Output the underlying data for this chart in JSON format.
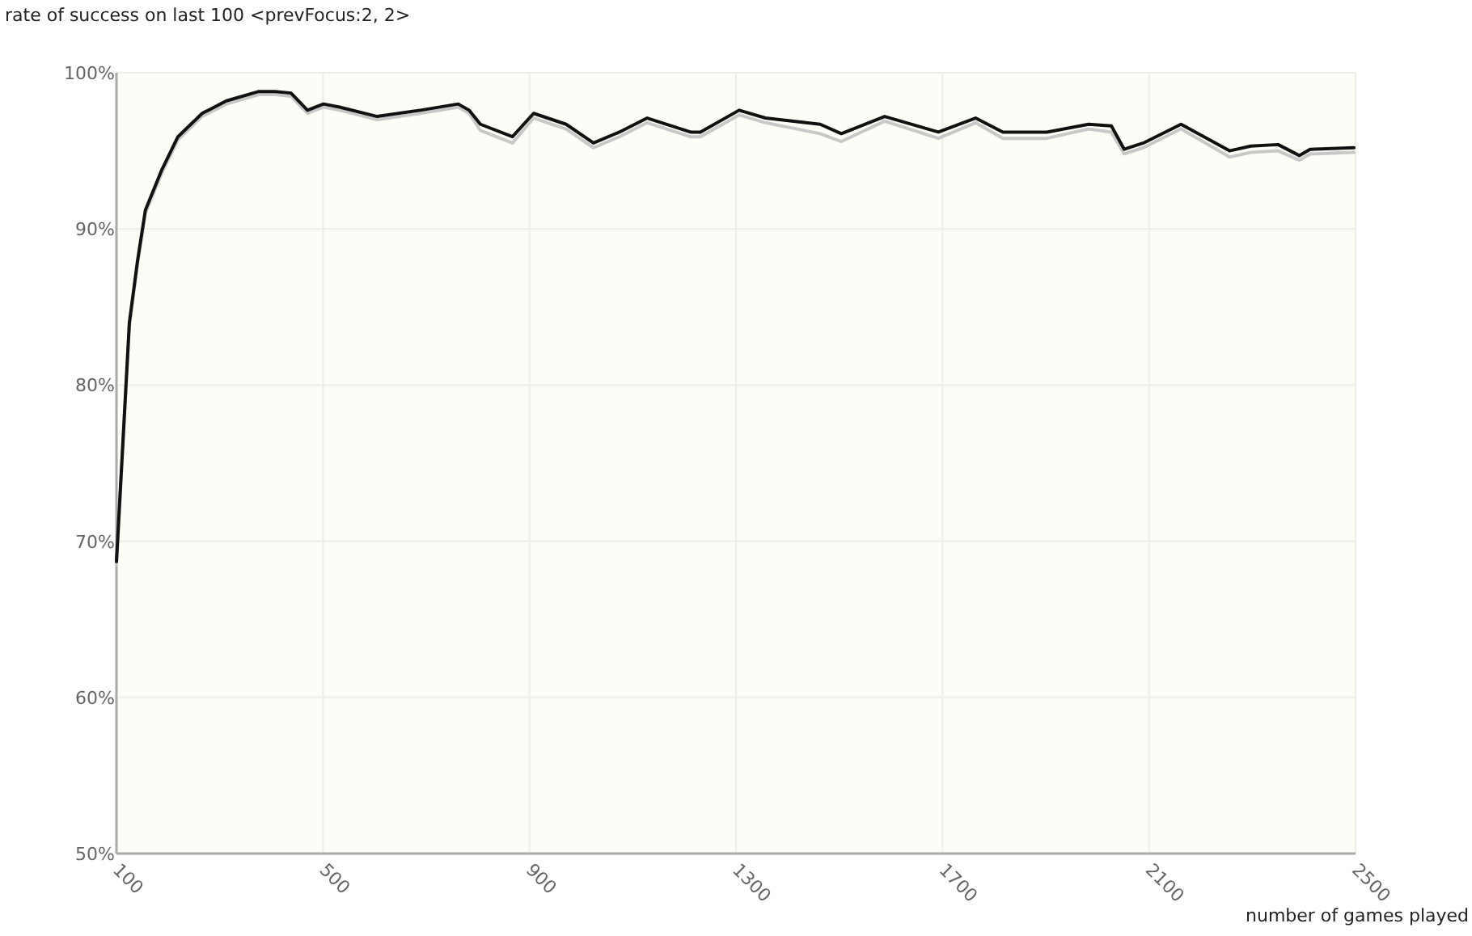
{
  "chart_data": {
    "type": "line",
    "title": "rate of success on last 100 <prevFocus:2, 2>",
    "xlabel": "number of games played",
    "xlim": [
      100,
      2500
    ],
    "xticks": [
      100,
      500,
      900,
      1300,
      1700,
      2100,
      2500
    ],
    "ylim": [
      50,
      100
    ],
    "yticks": [
      {
        "value": 50,
        "label": "50%"
      },
      {
        "value": 60,
        "label": "60%"
      },
      {
        "value": 70,
        "label": "70%"
      },
      {
        "value": 80,
        "label": "80%"
      },
      {
        "value": 90,
        "label": "90%"
      },
      {
        "value": 100,
        "label": "100%"
      }
    ],
    "grid": true,
    "marker": "none",
    "line_style": "solid",
    "x": [
      100,
      125,
      141,
      156,
      188,
      219,
      266,
      313,
      376,
      407,
      438,
      470,
      501,
      532,
      605,
      689,
      762,
      783,
      805,
      867,
      908,
      971,
      1024,
      1074,
      1128,
      1212,
      1231,
      1306,
      1357,
      1463,
      1504,
      1588,
      1692,
      1764,
      1817,
      1902,
      1983,
      2027,
      2052,
      2089,
      2162,
      2256,
      2297,
      2350,
      2391,
      2412,
      2497
    ],
    "series": [
      {
        "color": "#c8c8c8",
        "values": [
          68.5,
          83.8,
          87.8,
          91,
          93.6,
          95.7,
          97.2,
          98,
          98.6,
          98.6,
          98.5,
          97.4,
          97.8,
          97.6,
          97,
          97.4,
          97.8,
          97.4,
          96.3,
          95.5,
          97.1,
          96.4,
          95.2,
          95.9,
          96.8,
          95.9,
          95.9,
          97.3,
          96.8,
          96.1,
          95.6,
          96.9,
          95.8,
          96.8,
          95.8,
          95.8,
          96.4,
          96.2,
          94.8,
          95.2,
          96.4,
          94.6,
          94.9,
          95,
          94.4,
          94.8,
          94.9
        ]
      },
      {
        "color": "#111111",
        "values": [
          68.7,
          84,
          88,
          91.2,
          93.8,
          95.9,
          97.4,
          98.2,
          98.8,
          98.8,
          98.7,
          97.6,
          98,
          97.8,
          97.2,
          97.6,
          98,
          97.6,
          96.7,
          95.9,
          97.4,
          96.7,
          95.5,
          96.2,
          97.1,
          96.2,
          96.2,
          97.6,
          97.1,
          96.7,
          96.1,
          97.2,
          96.2,
          97.1,
          96.2,
          96.2,
          96.7,
          96.6,
          95.1,
          95.5,
          96.7,
          95,
          95.3,
          95.4,
          94.7,
          95.1,
          95.2
        ]
      }
    ]
  }
}
